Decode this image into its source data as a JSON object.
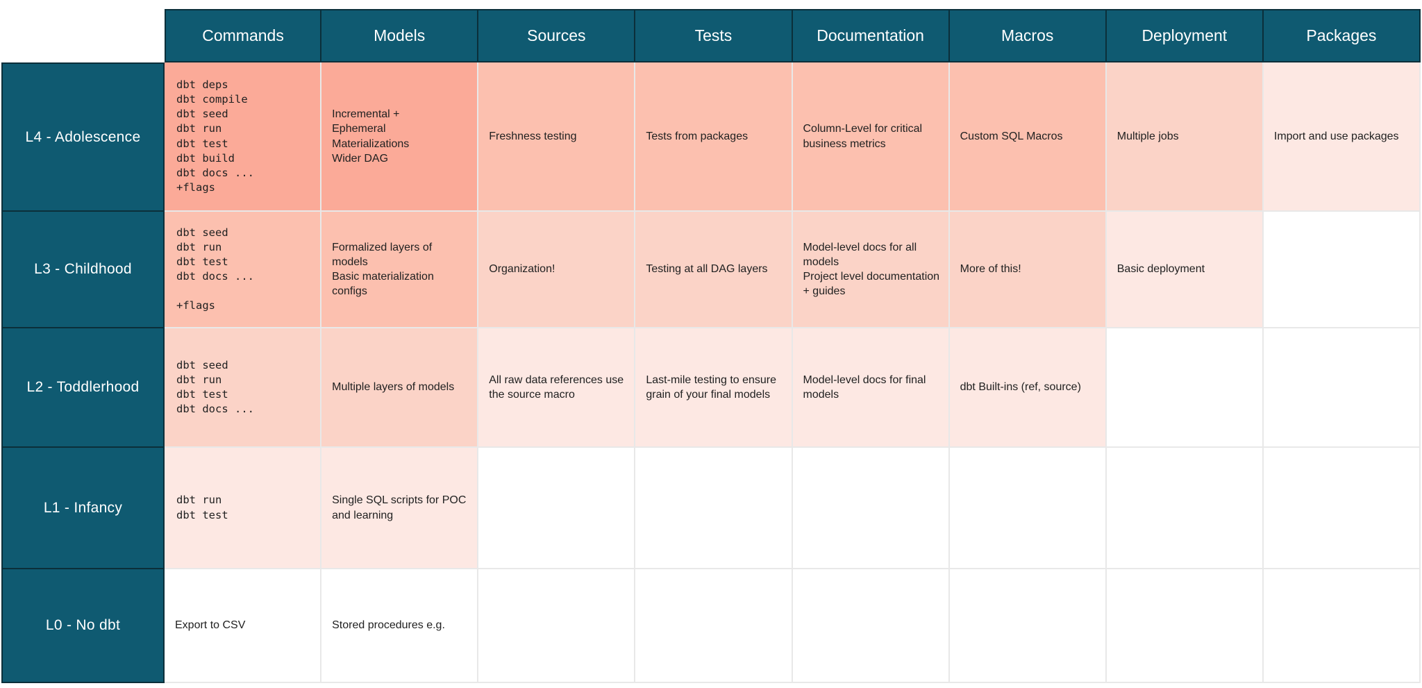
{
  "palette": {
    "teal": "#0f5a71",
    "teal_border": "#0b2f3a",
    "grid_line": "#e8e8e8",
    "shade_level1": "#fbaa98",
    "shade_level2": "#fcc0af",
    "shade_level3": "#fbd3c7",
    "shade_level4": "#fde8e3",
    "empty": "#ffffff",
    "body_text": "#212121",
    "header_text": "#ffffff"
  },
  "table": {
    "columns": [
      "Commands",
      "Models",
      "Sources",
      "Tests",
      "Documentation",
      "Macros",
      "Deployment",
      "Packages"
    ],
    "rows": [
      {
        "label": "L4 - Adolescence",
        "cells": [
          {
            "text": "dbt deps\ndbt compile\ndbt seed\ndbt run\ndbt test\ndbt build\ndbt docs ...\n+flags",
            "bg": "#fbaa98"
          },
          {
            "text": "Incremental +\nEphemeral\nMaterializations\nWider DAG",
            "bg": "#fbaa98"
          },
          {
            "text": "Freshness testing",
            "bg": "#fcc0af"
          },
          {
            "text": "Tests from packages",
            "bg": "#fcc0af"
          },
          {
            "text": "Column-Level for critical business metrics",
            "bg": "#fcc0af"
          },
          {
            "text": "Custom SQL Macros",
            "bg": "#fcc0af"
          },
          {
            "text": "Multiple jobs",
            "bg": "#fbd3c7"
          },
          {
            "text": "Import and use packages",
            "bg": "#fde8e3"
          }
        ]
      },
      {
        "label": "L3 - Childhood",
        "cells": [
          {
            "text": "dbt seed\ndbt run\ndbt test\ndbt docs ...\n\n+flags",
            "bg": "#fcc0af"
          },
          {
            "text": "Formalized layers of models\nBasic materialization configs",
            "bg": "#fcc0af"
          },
          {
            "text": "Organization!",
            "bg": "#fbd3c7"
          },
          {
            "text": "Testing at all DAG layers",
            "bg": "#fbd3c7"
          },
          {
            "text": "Model-level docs for all models\nProject level documentation + guides",
            "bg": "#fbd3c7"
          },
          {
            "text": "More of this!",
            "bg": "#fbd3c7"
          },
          {
            "text": "Basic deployment",
            "bg": "#fde8e3"
          },
          {
            "text": "",
            "bg": "#ffffff"
          }
        ]
      },
      {
        "label": "L2 - Toddlerhood",
        "cells": [
          {
            "text": "dbt seed\ndbt run\ndbt test\ndbt docs ...",
            "bg": "#fbd3c7"
          },
          {
            "text": "Multiple layers of models",
            "bg": "#fbd3c7"
          },
          {
            "text": "All raw data references use the source macro",
            "bg": "#fde8e3"
          },
          {
            "text": "Last-mile testing to ensure grain of your final models",
            "bg": "#fde8e3"
          },
          {
            "text": "Model-level docs for final models",
            "bg": "#fde8e3"
          },
          {
            "text": "dbt Built-ins (ref, source)",
            "bg": "#fde8e3"
          },
          {
            "text": "",
            "bg": "#ffffff"
          },
          {
            "text": "",
            "bg": "#ffffff"
          }
        ]
      },
      {
        "label": "L1 - Infancy",
        "cells": [
          {
            "text": "dbt run\ndbt test",
            "bg": "#fde8e3"
          },
          {
            "text": "Single SQL scripts for POC and learning",
            "bg": "#fde8e3"
          },
          {
            "text": "",
            "bg": "#ffffff"
          },
          {
            "text": "",
            "bg": "#ffffff"
          },
          {
            "text": "",
            "bg": "#ffffff"
          },
          {
            "text": "",
            "bg": "#ffffff"
          },
          {
            "text": "",
            "bg": "#ffffff"
          },
          {
            "text": "",
            "bg": "#ffffff"
          }
        ]
      },
      {
        "label": "L0 - No dbt",
        "cells": [
          {
            "text": "Export to CSV",
            "bg": "#ffffff"
          },
          {
            "text": "Stored procedures e.g.",
            "bg": "#ffffff"
          },
          {
            "text": "",
            "bg": "#ffffff"
          },
          {
            "text": "",
            "bg": "#ffffff"
          },
          {
            "text": "",
            "bg": "#ffffff"
          },
          {
            "text": "",
            "bg": "#ffffff"
          },
          {
            "text": "",
            "bg": "#ffffff"
          },
          {
            "text": "",
            "bg": "#ffffff"
          }
        ]
      }
    ]
  }
}
